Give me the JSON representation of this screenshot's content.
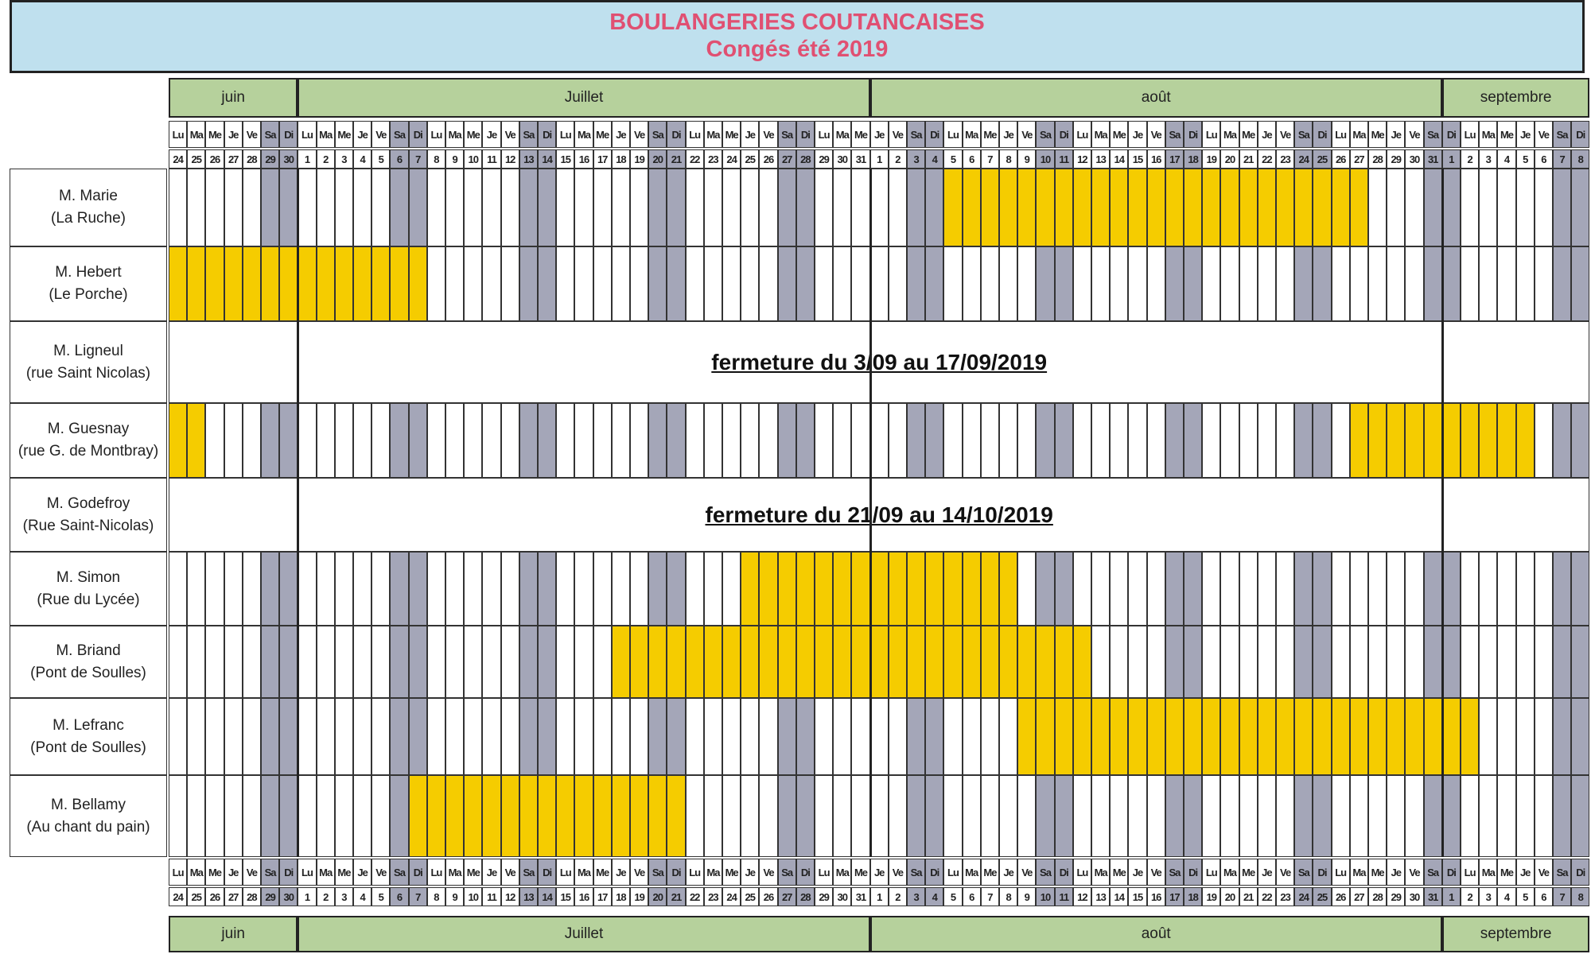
{
  "title": "BOULANGERIES COUTANCAISES",
  "subtitle": "Congés été 2019",
  "months": [
    {
      "label": "juin",
      "days": 7
    },
    {
      "label": "Juillet",
      "days": 31
    },
    {
      "label": "août",
      "days": 31
    },
    {
      "label": "septembre",
      "days": 8
    }
  ],
  "day_numbers": [
    24,
    25,
    26,
    27,
    28,
    29,
    30,
    1,
    2,
    3,
    4,
    5,
    6,
    7,
    8,
    9,
    10,
    11,
    12,
    13,
    14,
    15,
    16,
    17,
    18,
    19,
    20,
    21,
    22,
    23,
    24,
    25,
    26,
    27,
    28,
    29,
    30,
    31,
    1,
    2,
    3,
    4,
    5,
    6,
    7,
    8,
    9,
    10,
    11,
    12,
    13,
    14,
    15,
    16,
    17,
    18,
    19,
    20,
    21,
    22,
    23,
    24,
    25,
    26,
    27,
    28,
    29,
    30,
    31,
    1,
    2,
    3,
    4,
    5,
    6,
    7,
    8
  ],
  "weekday_labels": [
    "Lu",
    "Ma",
    "Me",
    "Je",
    "Ve",
    "Sa",
    "Di"
  ],
  "first_weekday_index": 0,
  "weekend_color": "#a4a6b8",
  "closed_color": "#f5cc00",
  "bakeries": [
    {
      "name": "M. Marie",
      "place": "(La Ruche)",
      "closed": [
        [
          42,
          64
        ]
      ]
    },
    {
      "name": "M. Hebert",
      "place": "(Le Porche)",
      "closed": [
        [
          0,
          13
        ]
      ]
    },
    {
      "name": "M. Ligneul",
      "place": "(rue Saint Nicolas)",
      "note": "fermeture du 3/09 au 17/09/2019"
    },
    {
      "name": "M. Guesnay",
      "place": "(rue G. de Montbray)",
      "closed": [
        [
          0,
          1
        ],
        [
          64,
          73
        ]
      ]
    },
    {
      "name": "M. Godefroy",
      "place": "(Rue Saint-Nicolas)",
      "note": "fermeture du 21/09 au 14/10/2019"
    },
    {
      "name": "M. Simon",
      "place": "(Rue du Lycée)",
      "closed": [
        [
          31,
          45
        ]
      ]
    },
    {
      "name": "M. Briand",
      "place": "(Pont de Soulles)",
      "closed": [
        [
          24,
          49
        ]
      ]
    },
    {
      "name": "M. Lefranc",
      "place": "(Pont de Soulles)",
      "closed": [
        [
          46,
          70
        ]
      ]
    },
    {
      "name": "M. Bellamy",
      "place": "(Au chant du pain)",
      "closed": [
        [
          13,
          27
        ]
      ]
    }
  ]
}
